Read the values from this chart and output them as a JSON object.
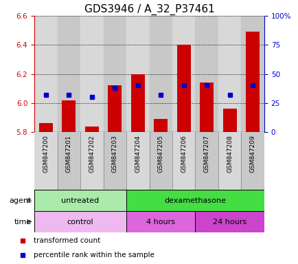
{
  "title": "GDS3946 / A_32_P37461",
  "samples": [
    "GSM847200",
    "GSM847201",
    "GSM847202",
    "GSM847203",
    "GSM847204",
    "GSM847205",
    "GSM847206",
    "GSM847207",
    "GSM847208",
    "GSM847209"
  ],
  "transformed_counts": [
    5.86,
    6.02,
    5.84,
    6.12,
    6.2,
    5.89,
    6.4,
    6.14,
    5.96,
    6.49
  ],
  "percentile_ranks": [
    32,
    32,
    30,
    38,
    40,
    32,
    40,
    40,
    32,
    40
  ],
  "ylim": [
    5.8,
    6.6
  ],
  "yticks": [
    5.8,
    6.0,
    6.2,
    6.4,
    6.6
  ],
  "y2ticks_pct": [
    0,
    25,
    50,
    75,
    100
  ],
  "y2tick_labels": [
    "0",
    "25",
    "50",
    "75",
    "100%"
  ],
  "bar_color": "#cc0000",
  "dot_color": "#0000cc",
  "bar_bottom": 5.8,
  "col_colors": [
    "#d8d8d8",
    "#c8c8c8"
  ],
  "agent_groups": [
    {
      "label": "untreated",
      "start": 0,
      "end": 4,
      "color": "#aaeaaa"
    },
    {
      "label": "dexamethasone",
      "start": 4,
      "end": 10,
      "color": "#44dd44"
    }
  ],
  "time_groups": [
    {
      "label": "control",
      "start": 0,
      "end": 4,
      "color": "#f0b8f0"
    },
    {
      "label": "4 hours",
      "start": 4,
      "end": 7,
      "color": "#dd66dd"
    },
    {
      "label": "24 hours",
      "start": 7,
      "end": 10,
      "color": "#cc44cc"
    }
  ],
  "legend_items": [
    {
      "label": "transformed count",
      "color": "#cc0000"
    },
    {
      "label": "percentile rank within the sample",
      "color": "#0000cc"
    }
  ],
  "title_fontsize": 11,
  "tick_fontsize": 7.5,
  "row_fontsize": 8,
  "legend_fontsize": 7.5
}
